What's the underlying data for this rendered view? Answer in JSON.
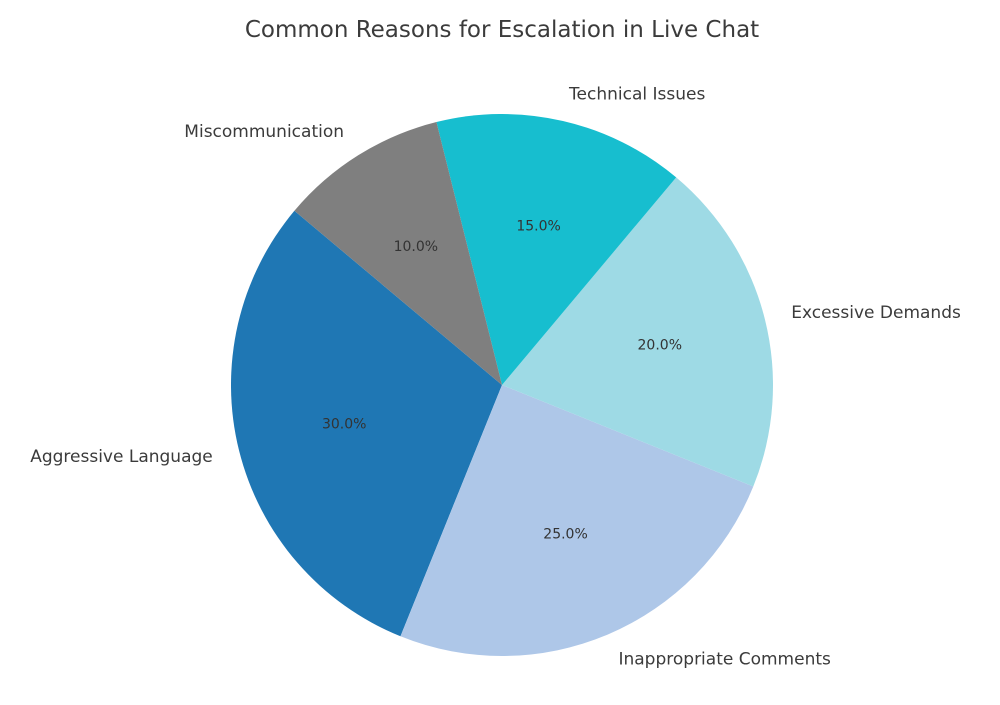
{
  "chart_data": {
    "type": "pie",
    "title": "Common Reasons for Escalation in Live Chat",
    "slices": [
      {
        "name": "Aggressive Language",
        "value": 30.0,
        "label": "30.0%",
        "color": "#1f77b4"
      },
      {
        "name": "Inappropriate Comments",
        "value": 25.0,
        "label": "25.0%",
        "color": "#aec7e8"
      },
      {
        "name": "Excessive Demands",
        "value": 20.0,
        "label": "20.0%",
        "color": "#9edae5"
      },
      {
        "name": "Technical Issues",
        "value": 15.0,
        "label": "15.0%",
        "color": "#17becf"
      },
      {
        "name": "Miscommunication",
        "value": 10.0,
        "label": "10.0%",
        "color": "#7f7f7f"
      }
    ],
    "start_angle_deg": 140,
    "direction": "counterclockwise",
    "legend": "none"
  }
}
